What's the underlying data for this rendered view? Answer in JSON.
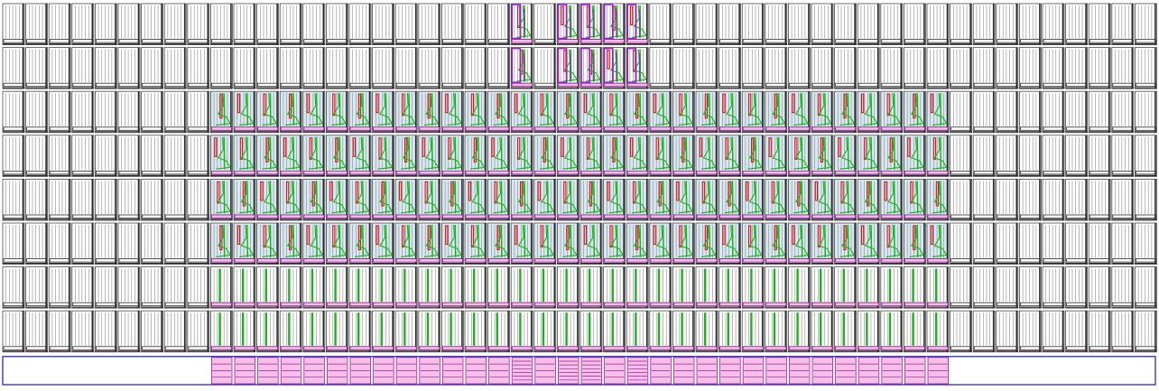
{
  "view": {
    "kind": "fpga-device-floorplan",
    "text_labels": []
  },
  "grid": {
    "columns": 50,
    "rows": 8
  },
  "colors": {
    "background": "#ffffff",
    "tile_outline": "#4a4a4a",
    "tile_lines": "#8a8a8a",
    "tile_base": "#2b2b2b",
    "active_fill": "#d6e9f2",
    "green_routing": "#19b319",
    "red_wire": "#e0151b",
    "purple_highlight": "#a01fd6",
    "pink_io_fill": "#f6bfe8",
    "pink_io_stroke": "#9b1f9b",
    "io_bar_stroke": "#1a1aa8",
    "gray_route": "#5c5c8a"
  },
  "regions": {
    "used_columns_start": 9,
    "used_columns_end": 40,
    "used_logic_rows": [
      2,
      3,
      4,
      5
    ],
    "used_vertical_rows": [
      6,
      7
    ],
    "highlight_columns": [
      22,
      24,
      25,
      26,
      27
    ],
    "highlight_rows": [
      0,
      1
    ],
    "io_bank_dense_columns": [
      22,
      24,
      25,
      27
    ]
  }
}
